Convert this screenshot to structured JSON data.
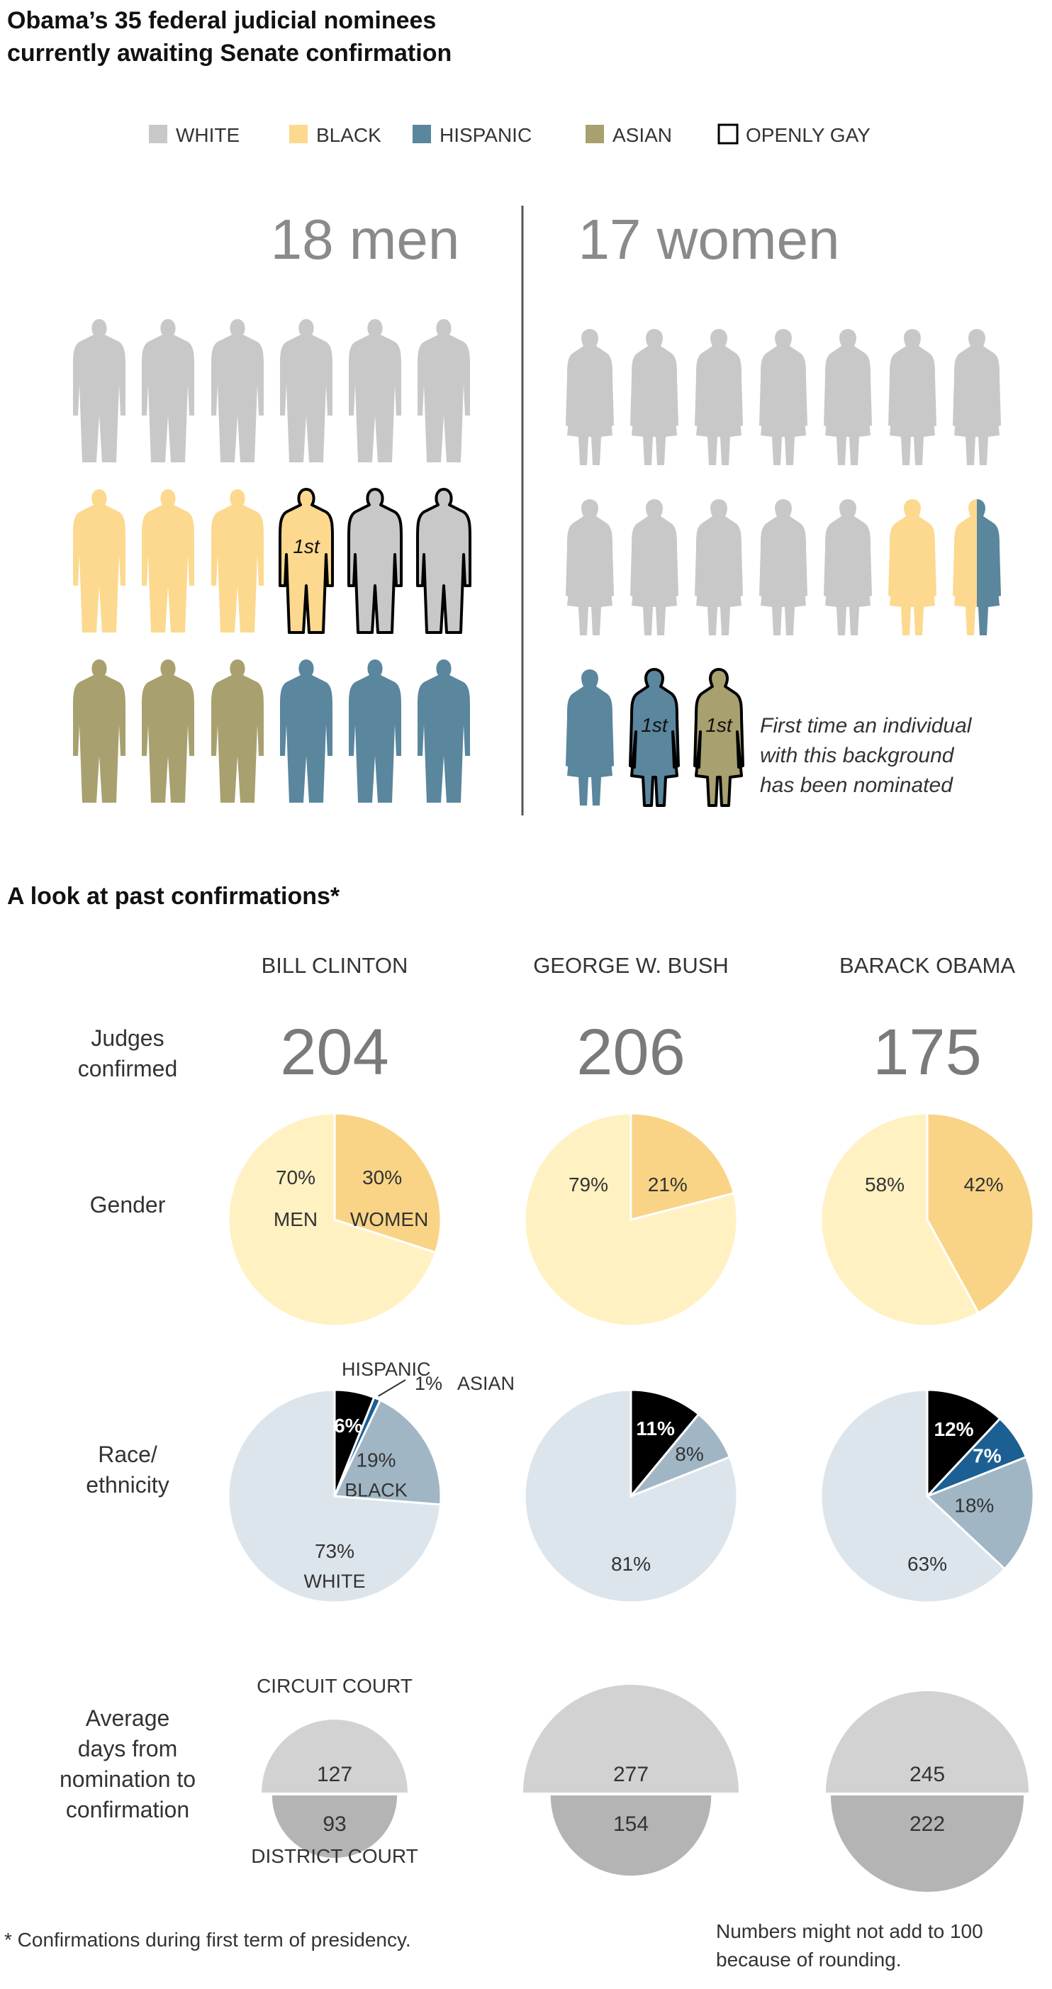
{
  "title_line1": "Obama’s 35 federal judicial nominees",
  "title_line2": "currently awaiting Senate confirmation",
  "colors": {
    "white": "#c8c8c8",
    "black": "#fcd98e",
    "hispanic": "#5a869e",
    "asian": "#a8a06e",
    "pie_men": "#fff1c2",
    "pie_women": "#f9d486",
    "pie_white": "#dde5ec",
    "pie_black_group": "#a1b6c5",
    "pie_hispanic": "#1b5f93",
    "pie_asian_black": "#000000",
    "circuit": "#d2d2d2",
    "district": "#b4b4b4"
  },
  "legend": [
    {
      "label": "WHITE",
      "color": "#c8c8c8",
      "outline": false
    },
    {
      "label": "BLACK",
      "color": "#fcd98e",
      "outline": false
    },
    {
      "label": "HISPANIC",
      "color": "#5a869e",
      "outline": false
    },
    {
      "label": "ASIAN",
      "color": "#a8a06e",
      "outline": false
    },
    {
      "label": "OPENLY GAY",
      "color": "#ffffff",
      "outline": true
    }
  ],
  "nominees": {
    "men_header": "18 men",
    "women_header": "17 women",
    "first_label": "1st",
    "note": [
      "First time an individual",
      "with this background",
      "has been nominated"
    ],
    "men": [
      [
        {
          "c": "white"
        },
        {
          "c": "white"
        },
        {
          "c": "white"
        },
        {
          "c": "white"
        },
        {
          "c": "white"
        },
        {
          "c": "white"
        }
      ],
      [
        {
          "c": "black"
        },
        {
          "c": "black"
        },
        {
          "c": "black"
        },
        {
          "c": "black",
          "first": true,
          "gay": true
        },
        {
          "c": "white",
          "gay": true
        },
        {
          "c": "white",
          "gay": true
        }
      ],
      [
        {
          "c": "asian"
        },
        {
          "c": "asian"
        },
        {
          "c": "asian"
        },
        {
          "c": "hispanic"
        },
        {
          "c": "hispanic"
        },
        {
          "c": "hispanic"
        }
      ]
    ],
    "women": [
      [
        {
          "c": "white"
        },
        {
          "c": "white"
        },
        {
          "c": "white"
        },
        {
          "c": "white"
        },
        {
          "c": "white"
        },
        {
          "c": "white"
        },
        {
          "c": "white"
        }
      ],
      [
        {
          "c": "white"
        },
        {
          "c": "white"
        },
        {
          "c": "white"
        },
        {
          "c": "white"
        },
        {
          "c": "white"
        },
        {
          "c": "black"
        },
        {
          "c": "black",
          "c2": "hispanic"
        }
      ],
      [
        {
          "c": "hispanic"
        },
        {
          "c": "hispanic",
          "first": true,
          "gay": true
        },
        {
          "c": "asian",
          "first": true,
          "gay": true
        }
      ]
    ]
  },
  "past_title": "A look at past confirmations*",
  "row_labels": {
    "judges": [
      "Judges",
      "confirmed"
    ],
    "gender": [
      "Gender"
    ],
    "race": [
      "Race/",
      "ethnicity"
    ],
    "days": [
      "Average",
      "days from",
      "nomination to",
      "confirmation"
    ]
  },
  "court_labels": {
    "circuit": "CIRCUIT COURT",
    "district": "DISTRICT COURT"
  },
  "chart_data": {
    "type": "pie",
    "presidents": [
      {
        "name": "BILL CLINTON",
        "judges_confirmed": "204",
        "gender": [
          {
            "name": "Men",
            "value": 70,
            "label": "70%",
            "sub": "MEN"
          },
          {
            "name": "Women",
            "value": 30,
            "label": "30%",
            "sub": "WOMEN"
          }
        ],
        "race": [
          {
            "name": "Black",
            "value": 6,
            "label": "6%"
          },
          {
            "name": "Asian",
            "value": 1,
            "label": "1%",
            "sub": "ASIAN"
          },
          {
            "name": "Hispanic",
            "value": 19,
            "label": "19%",
            "sub": "BLACK"
          },
          {
            "name": "White",
            "value": 73,
            "label": "73%",
            "sub": "WHITE"
          }
        ],
        "hispanic_callout": "HISPANIC",
        "days": {
          "circuit": 127,
          "district": 93
        }
      },
      {
        "name": "GEORGE W. BUSH",
        "judges_confirmed": "206",
        "gender": [
          {
            "name": "Men",
            "value": 79,
            "label": "79%"
          },
          {
            "name": "Women",
            "value": 21,
            "label": "21%"
          }
        ],
        "race": [
          {
            "name": "Black",
            "value": 11,
            "label": "11%"
          },
          {
            "name": "Hispanic",
            "value": 8,
            "label": "8%"
          },
          {
            "name": "White",
            "value": 81,
            "label": "81%"
          }
        ],
        "days": {
          "circuit": 277,
          "district": 154
        }
      },
      {
        "name": "BARACK OBAMA",
        "judges_confirmed": "175",
        "gender": [
          {
            "name": "Men",
            "value": 58,
            "label": "58%"
          },
          {
            "name": "Women",
            "value": 42,
            "label": "42%"
          }
        ],
        "race": [
          {
            "name": "Black",
            "value": 12,
            "label": "12%"
          },
          {
            "name": "Asian",
            "value": 7,
            "label": "7%"
          },
          {
            "name": "Hispanic",
            "value": 18,
            "label": "18%"
          },
          {
            "name": "White",
            "value": 63,
            "label": "63%"
          }
        ],
        "days": {
          "circuit": 245,
          "district": 222
        }
      }
    ]
  },
  "footnote": "* Confirmations during first term of presidency.",
  "rounding_note": [
    "Numbers might not add to 100",
    "because of rounding."
  ]
}
